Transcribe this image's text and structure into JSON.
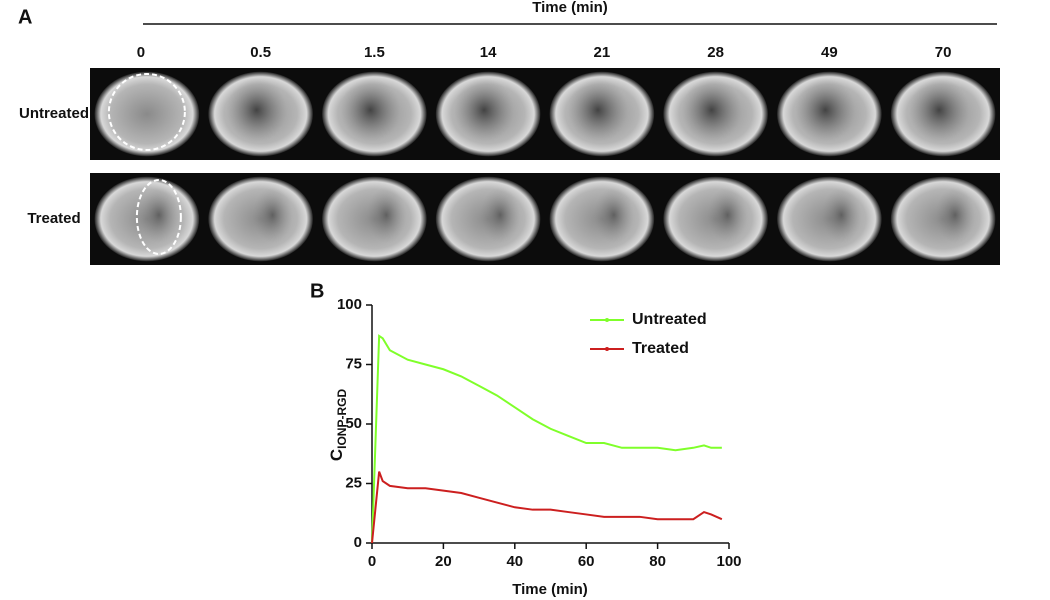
{
  "panel_a": {
    "label": "A",
    "axis_title": "Time (min)",
    "timepoints": [
      0,
      0.5,
      1.5,
      14,
      21,
      28,
      49,
      70
    ],
    "rows": [
      "Untreated",
      "Treated"
    ]
  },
  "chart_data": {
    "type": "line",
    "panel_label": "B",
    "xlabel": "Time (min)",
    "ylabel": "C",
    "ylabel_sub": "IONP-RGD",
    "x": [
      0,
      2,
      3,
      5,
      10,
      15,
      20,
      25,
      30,
      35,
      40,
      45,
      50,
      55,
      60,
      65,
      70,
      75,
      80,
      85,
      90,
      93,
      95,
      98
    ],
    "series": [
      {
        "name": "Untreated",
        "color": "#7fff2a",
        "values": [
          0,
          87,
          86,
          81,
          77,
          75,
          73,
          70,
          66,
          62,
          57,
          52,
          48,
          45,
          42,
          42,
          40,
          40,
          40,
          39,
          40,
          41,
          40,
          40
        ]
      },
      {
        "name": "Treated",
        "color": "#cc1f1f",
        "values": [
          0,
          30,
          26,
          24,
          23,
          23,
          22,
          21,
          19,
          17,
          15,
          14,
          14,
          13,
          12,
          11,
          11,
          11,
          10,
          10,
          10,
          13,
          12,
          10
        ]
      }
    ],
    "xlim": [
      0,
      100
    ],
    "xticks": [
      0,
      20,
      40,
      60,
      80,
      100
    ],
    "ylim": [
      0,
      100
    ],
    "yticks": [
      0,
      25,
      50,
      75,
      100
    ],
    "legend": "upper right"
  }
}
